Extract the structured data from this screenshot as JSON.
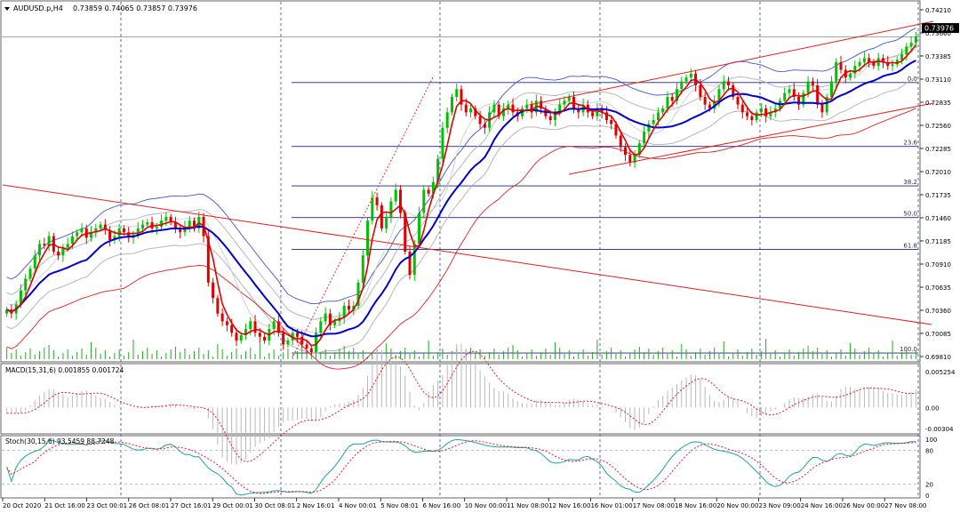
{
  "main_panel": {
    "symbol_label": "AUDUSD.p,H4",
    "ohlc": "0.73859 0.74065 0.73857 0.73976",
    "current_price": "0.73976",
    "price_ticks": [
      "0.74210",
      "0.73660",
      "0.73385",
      "0.73110",
      "0.72835",
      "0.72560",
      "0.72285",
      "0.72010",
      "0.71735",
      "0.71460",
      "0.71185",
      "0.70910",
      "0.70635",
      "0.70360",
      "0.70085",
      "0.69810"
    ],
    "fib_labels": [
      "0.0",
      "23.6",
      "38.2",
      "50.0",
      "61.8",
      "100.0"
    ],
    "colors": {
      "bull": "#00c000",
      "bear": "#e00000",
      "ma_fast": "#e00000",
      "ma_slow": "#0000cc",
      "band": "#0000cc",
      "env": "#e00000"
    }
  },
  "macd_panel": {
    "label": "MACD(15,31,6) 0.001855 0.001724",
    "ticks": [
      "0.005254",
      "0.00",
      "-0.00304"
    ]
  },
  "stoch_panel": {
    "label": "Stoch(30,15,6) 93.5459 88.7248",
    "ticks": [
      "100",
      "80",
      "20",
      "0"
    ]
  },
  "time_axis": [
    "20 Oct 2020",
    "21 Oct 16:00",
    "23 Oct 00:01",
    "26 Oct 08:01",
    "27 Oct 16:01",
    "29 Oct 00:01",
    "30 Oct 08:01",
    "2 Nov 16:01",
    "4 Nov 00:01",
    "5 Nov 08:01",
    "6 Nov 16:00",
    "10 Nov 00:00",
    "11 Nov 08:00",
    "12 Nov 16:00",
    "16 Nov 01:00",
    "17 Nov 08:00",
    "18 Nov 16:00",
    "20 Nov 00:00",
    "23 Nov 09:00",
    "24 Nov 16:00",
    "26 Nov 00:00",
    "27 Nov 08:00"
  ],
  "chart_data": {
    "type": "candlestick",
    "instrument": "AUDUSD.p",
    "timeframe": "H4",
    "ylim": [
      0.6981,
      0.7436
    ],
    "close_series": [
      0.7045,
      0.704,
      0.7052,
      0.707,
      0.7085,
      0.7098,
      0.7115,
      0.713,
      0.7128,
      0.714,
      0.712,
      0.7115,
      0.7125,
      0.713,
      0.714,
      0.7145,
      0.715,
      0.7138,
      0.7145,
      0.715,
      0.7155,
      0.7148,
      0.7135,
      0.714,
      0.715,
      0.7145,
      0.7138,
      0.7142,
      0.715,
      0.7155,
      0.7158,
      0.715,
      0.7152,
      0.716,
      0.7165,
      0.7158,
      0.715,
      0.7145,
      0.7152,
      0.716,
      0.715,
      0.7165,
      0.714,
      0.708,
      0.706,
      0.704,
      0.703,
      0.7025,
      0.7015,
      0.7005,
      0.7012,
      0.702,
      0.703,
      0.7015,
      0.701,
      0.7005,
      0.702,
      0.703,
      0.7015,
      0.7,
      0.7005,
      0.7015,
      0.701,
      0.7,
      0.6995,
      0.699,
      0.7015,
      0.703,
      0.704,
      0.7025,
      0.703,
      0.7035,
      0.705,
      0.7045,
      0.705,
      0.708,
      0.7115,
      0.716,
      0.719,
      0.718,
      0.715,
      0.7165,
      0.7185,
      0.72,
      0.717,
      0.712,
      0.709,
      0.713,
      0.717,
      0.72,
      0.7195,
      0.721,
      0.724,
      0.728,
      0.73,
      0.732,
      0.733,
      0.731,
      0.73,
      0.7305,
      0.7295,
      0.7285,
      0.728,
      0.73,
      0.731,
      0.7295,
      0.7305,
      0.731,
      0.73,
      0.7295,
      0.7305,
      0.731,
      0.73,
      0.7315,
      0.7305,
      0.7295,
      0.729,
      0.73,
      0.731,
      0.7315,
      0.732,
      0.7305,
      0.73,
      0.731,
      0.73,
      0.7295,
      0.7305,
      0.73,
      0.729,
      0.7285,
      0.727,
      0.7255,
      0.7245,
      0.7235,
      0.7245,
      0.726,
      0.7275,
      0.7285,
      0.729,
      0.73,
      0.7305,
      0.732,
      0.7315,
      0.733,
      0.734,
      0.7345,
      0.735,
      0.7335,
      0.732,
      0.731,
      0.7305,
      0.7315,
      0.733,
      0.734,
      0.7335,
      0.732,
      0.731,
      0.73,
      0.7295,
      0.729,
      0.73,
      0.7305,
      0.7295,
      0.73,
      0.7305,
      0.7315,
      0.7325,
      0.733,
      0.732,
      0.731,
      0.7325,
      0.734,
      0.7335,
      0.731,
      0.73,
      0.732,
      0.734,
      0.7365,
      0.7355,
      0.7345,
      0.735,
      0.736,
      0.7365,
      0.737,
      0.7365,
      0.736,
      0.737,
      0.7365,
      0.736,
      0.7362,
      0.7368,
      0.7375,
      0.7385,
      0.739,
      0.7398
    ],
    "fib_levels": [
      {
        "label": "0.0",
        "price": 0.73385
      },
      {
        "label": "23.6",
        "price": 0.7256
      },
      {
        "label": "38.2",
        "price": 0.7205
      },
      {
        "label": "50.0",
        "price": 0.7164
      },
      {
        "label": "61.8",
        "price": 0.7123
      },
      {
        "label": "100.0",
        "price": 0.6989
      }
    ],
    "macd": {
      "name": "MACD(15,31,6)",
      "ylim": [
        -0.00304,
        0.005254
      ]
    },
    "stoch": {
      "name": "Stoch(30,15,6)",
      "ylim": [
        0,
        100
      ],
      "levels": [
        80,
        20
      ]
    }
  }
}
